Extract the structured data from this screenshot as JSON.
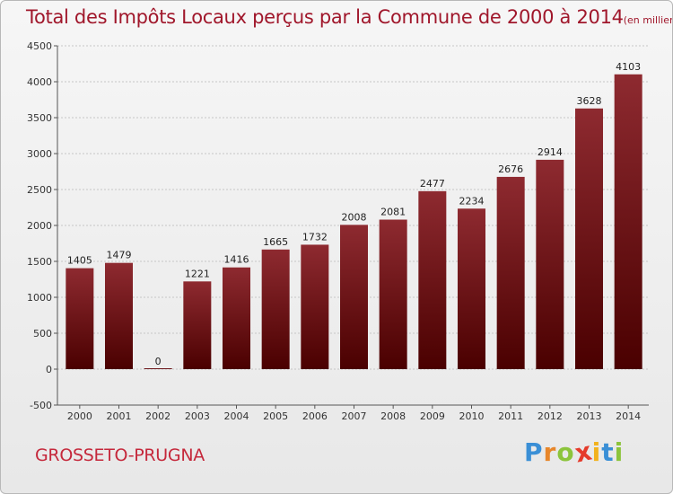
{
  "header": {
    "title": "Total des Impôts Locaux perçus par la Commune de 2000 à 2014",
    "subtitle": "(en milliers d'€)"
  },
  "footer": {
    "commune": "GROSSETO-PRUGNA",
    "logo": [
      "P",
      "r",
      "o",
      "x",
      "i",
      "t",
      "i"
    ]
  },
  "colors": {
    "bar_top": "#8e2a30",
    "bar_bottom": "#4a0000",
    "title": "#a0172b",
    "logo": [
      "#3a8fd6",
      "#e7862a",
      "#8cc43c",
      "#e53b2b",
      "#f2b21d",
      "#3a8fd6",
      "#8cc43c"
    ]
  },
  "chart_data": {
    "type": "bar",
    "title": "Total des Impôts Locaux perçus par la Commune de 2000 à 2014",
    "xlabel": "",
    "ylabel": "",
    "units": "milliers d'€",
    "categories": [
      "2000",
      "2001",
      "2002",
      "2003",
      "2004",
      "2005",
      "2006",
      "2007",
      "2008",
      "2009",
      "2010",
      "2011",
      "2012",
      "2013",
      "2014"
    ],
    "values": [
      1405,
      1479,
      0,
      1221,
      1416,
      1665,
      1732,
      2008,
      2081,
      2477,
      2234,
      2676,
      2914,
      3628,
      4103
    ],
    "ylim": [
      -500,
      4500
    ],
    "yticks": [
      -500,
      0,
      500,
      1000,
      1500,
      2000,
      2500,
      3000,
      3500,
      4000,
      4500
    ],
    "grid": true,
    "legend": "none"
  }
}
